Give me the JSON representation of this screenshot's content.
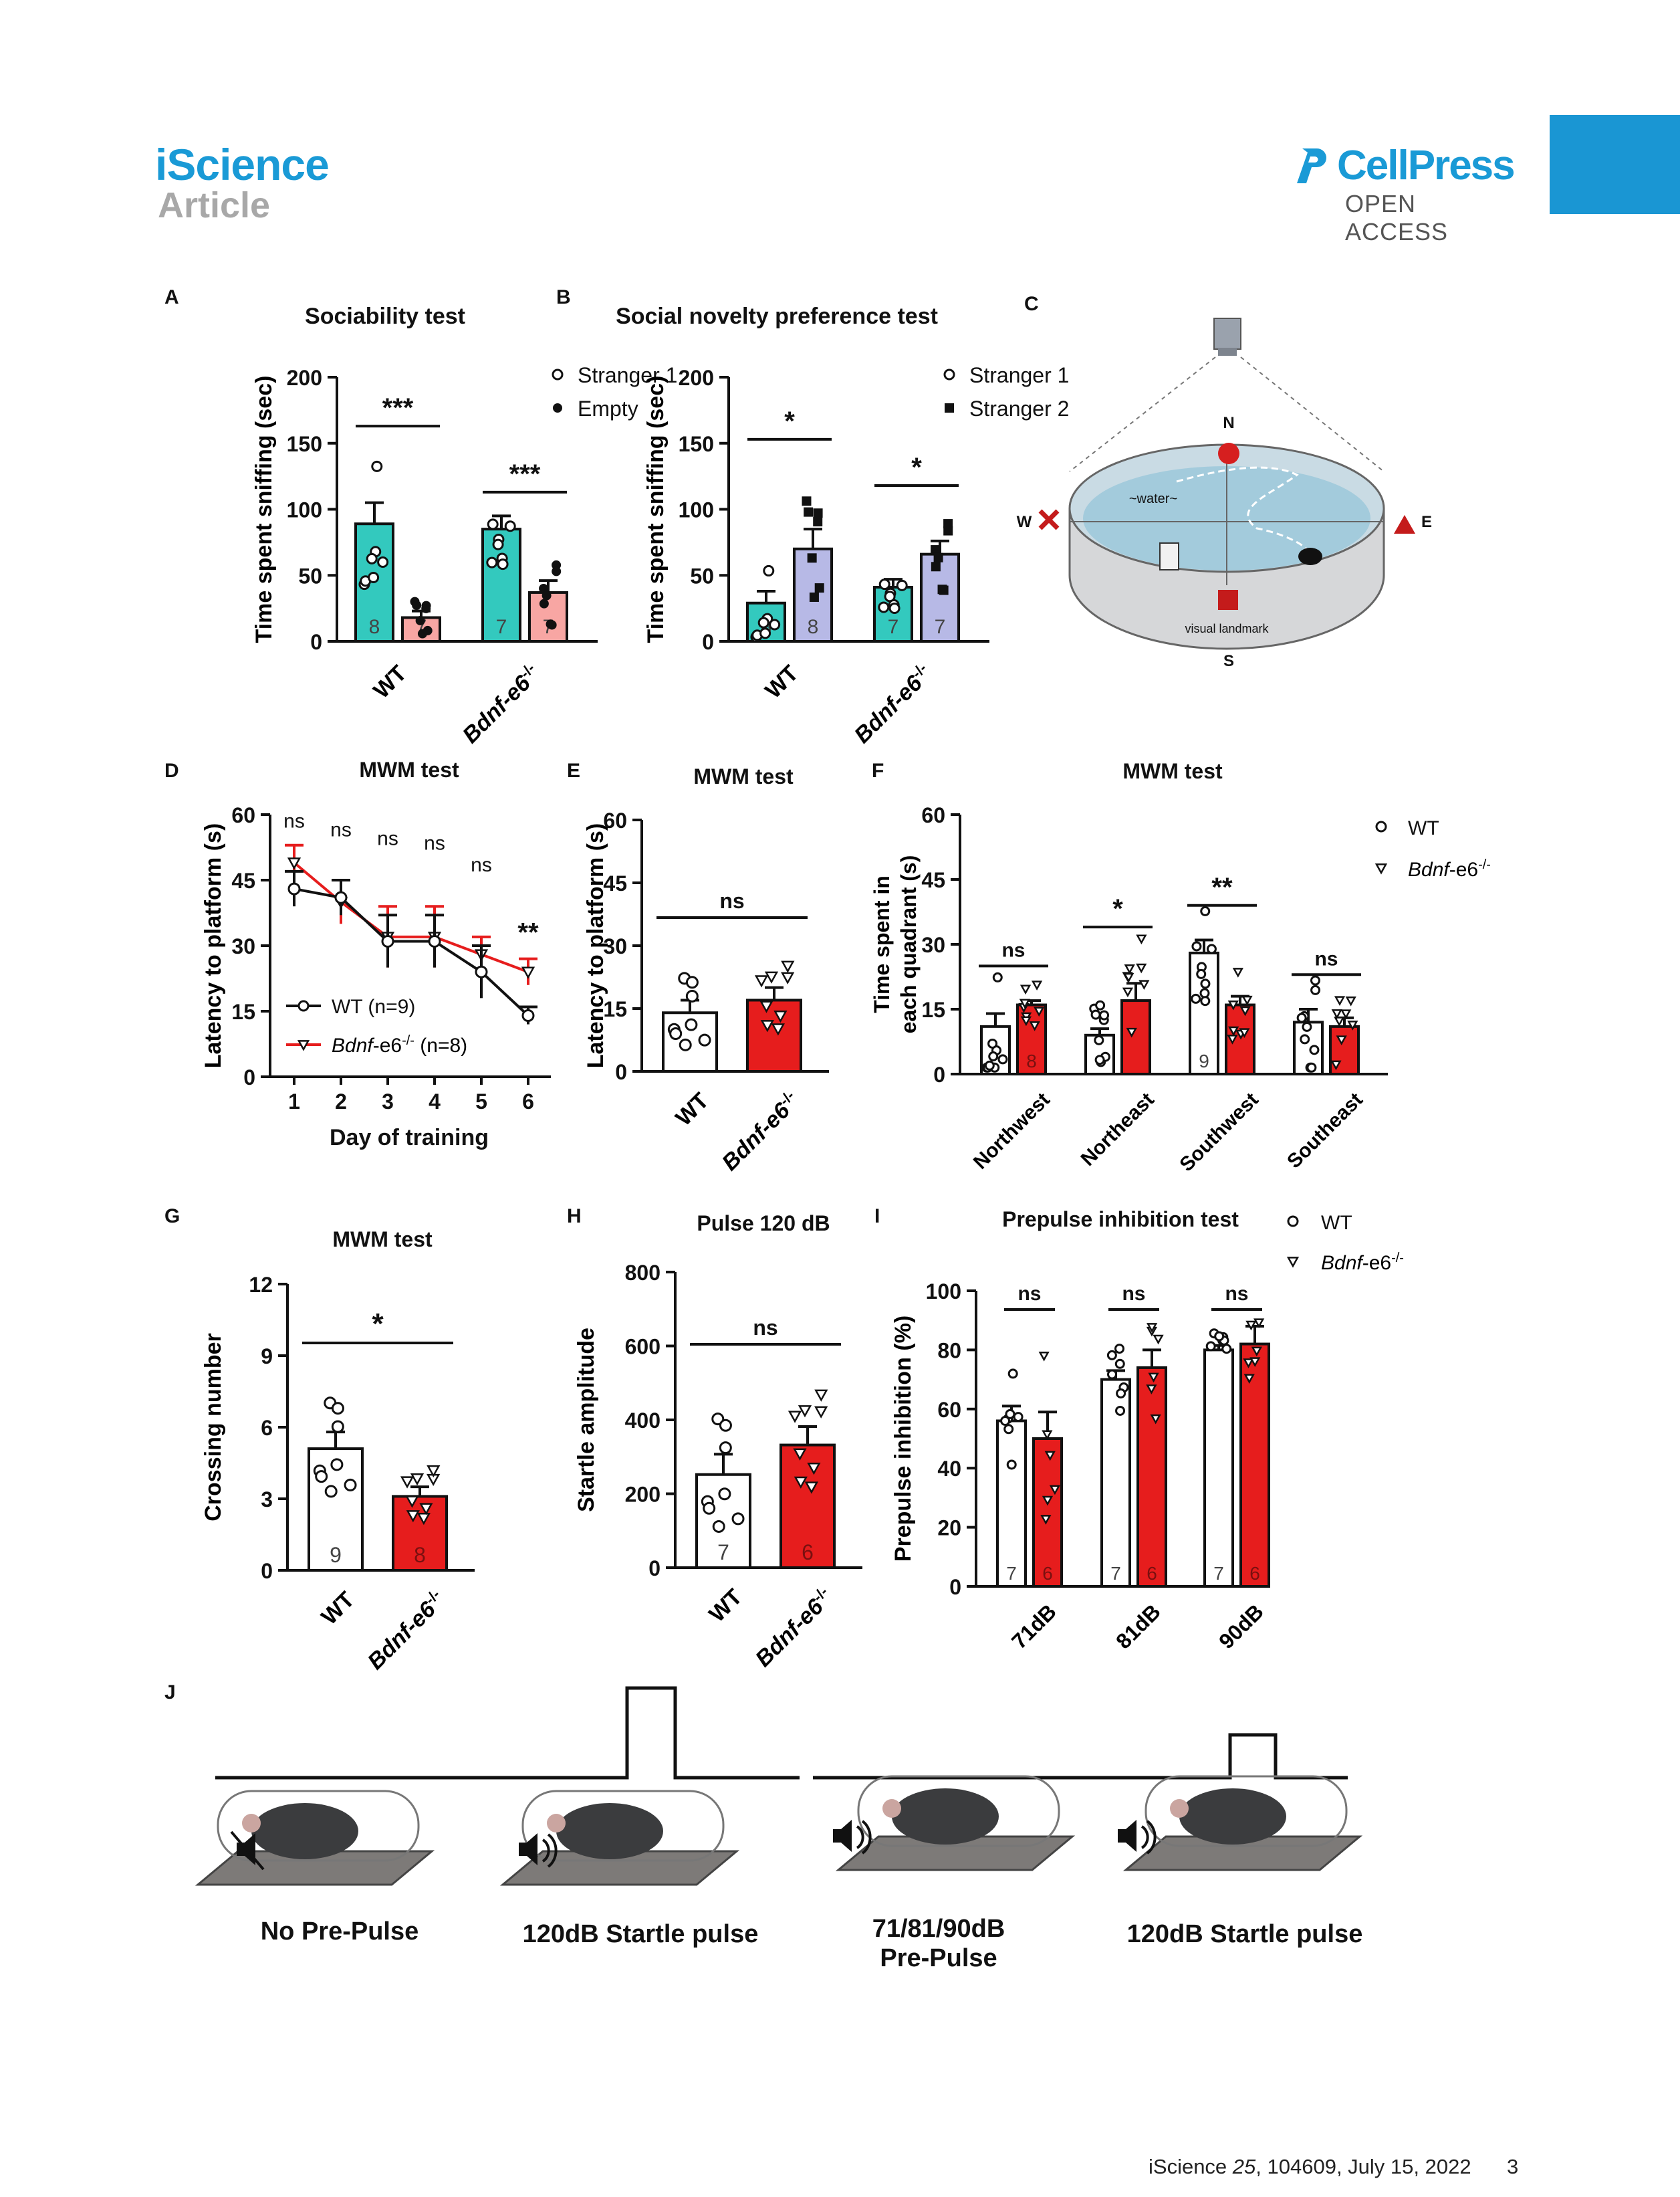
{
  "header": {
    "journal": "iScience",
    "article_type": "Article",
    "publisher": "CellPress",
    "access": "OPEN ACCESS"
  },
  "footer": {
    "citation_prefix": "iScience ",
    "citation_volume": "25",
    "citation_rest": ", 104609, July 15, 2022",
    "page_number": "3"
  },
  "colors": {
    "teal": "#33c9be",
    "pink": "#f8a6a3",
    "lavender": "#b7b9e6",
    "red": "#e61d1d",
    "brand_blue": "#1a9ad6"
  },
  "panels": {
    "A": {
      "letter": "A",
      "title": "Sociability test",
      "ylabel": "Time spent sniffing (sec)",
      "yticks": [
        "0",
        "50",
        "100",
        "150",
        "200"
      ],
      "legend": [
        "Stranger 1",
        "Empty"
      ],
      "groups": [
        "WT",
        "Bdnf-e6"
      ],
      "group_sup": "-/-",
      "bars": [
        89,
        18,
        85,
        37
      ],
      "errors": [
        16,
        5,
        10,
        9
      ],
      "n": [
        "8",
        "7",
        "7",
        "7"
      ],
      "sig": [
        "***",
        "***"
      ]
    },
    "B": {
      "letter": "B",
      "title": "Social novelty preference test",
      "ylabel": "Time spent sniffing (sec)",
      "yticks": [
        "0",
        "50",
        "100",
        "150",
        "200"
      ],
      "legend": [
        "Stranger 1",
        "Stranger 2"
      ],
      "groups": [
        "WT",
        "Bdnf-e6"
      ],
      "group_sup": "-/-",
      "bars": [
        29,
        70,
        41,
        66
      ],
      "errors": [
        9,
        15,
        6,
        10
      ],
      "n": [
        "8",
        "8",
        "7",
        "7"
      ],
      "sig": [
        "*",
        "*"
      ]
    },
    "C": {
      "letter": "C",
      "labels": {
        "north": "N",
        "south": "S",
        "west": "W",
        "east": "E",
        "water": "~water~",
        "landmark": "visual landmark"
      }
    },
    "D": {
      "letter": "D",
      "title": "MWM test",
      "ylabel": "Latency to platform (s)",
      "xlabel": "Day of training",
      "yticks": [
        "0",
        "15",
        "30",
        "45",
        "60"
      ],
      "xticks": [
        "1",
        "2",
        "3",
        "4",
        "5",
        "6"
      ],
      "wt": [
        43,
        41,
        31,
        31,
        24,
        14
      ],
      "ko": [
        49,
        40,
        32,
        32,
        28,
        24
      ],
      "wt_err": [
        4,
        4,
        6,
        6,
        6,
        2
      ],
      "ko_err": [
        4,
        5,
        7,
        7,
        4,
        3
      ],
      "sig": [
        "ns",
        "ns",
        "ns",
        "ns",
        "ns",
        "**"
      ],
      "legend_wt": "WT (n=9)",
      "legend_ko_prefix": "Bdnf",
      "legend_ko_mid": "-e6",
      "legend_ko_sup": "-/-",
      "legend_ko_suffix": " (n=8)"
    },
    "E": {
      "letter": "E",
      "title": "MWM test",
      "ylabel": "Latency to platform (s)",
      "yticks": [
        "0",
        "15",
        "30",
        "45",
        "60"
      ],
      "groups": [
        "WT",
        "Bdnf-e6"
      ],
      "group_sup": "-/-",
      "bars": [
        14,
        17
      ],
      "errors": [
        3,
        3
      ],
      "sig": "ns"
    },
    "F": {
      "letter": "F",
      "title": "MWM test",
      "ylabel_1": "Time spent in",
      "ylabel_2": "each quadrant (s)",
      "yticks": [
        "0",
        "15",
        "30",
        "45",
        "60"
      ],
      "quadrants": [
        "Northwest",
        "Northeast",
        "Southwest",
        "Southeast"
      ],
      "wt": [
        11,
        9,
        28,
        12
      ],
      "ko": [
        16,
        17,
        16,
        11
      ],
      "wt_err": [
        3,
        1.5,
        3,
        3
      ],
      "ko_err": [
        1,
        4,
        2,
        2
      ],
      "sig": [
        "ns",
        "*",
        "**",
        "ns"
      ],
      "n": [
        "8",
        "9"
      ],
      "legend_wt": "WT",
      "legend_ko_prefix": "Bdnf",
      "legend_ko_mid": "-e6",
      "legend_ko_sup": "-/-"
    },
    "G": {
      "letter": "G",
      "title": "MWM test",
      "ylabel": "Crossing number",
      "yticks": [
        "0",
        "3",
        "6",
        "9",
        "12"
      ],
      "groups": [
        "WT",
        "Bdnf-e6"
      ],
      "group_sup": "-/-",
      "bars": [
        5.1,
        3.1
      ],
      "errors": [
        0.7,
        0.4
      ],
      "n": [
        "9",
        "8"
      ],
      "sig": "*"
    },
    "H": {
      "letter": "H",
      "title": "Pulse 120 dB",
      "ylabel": "Startle amplitude",
      "yticks": [
        "0",
        "200",
        "400",
        "600",
        "800"
      ],
      "groups": [
        "WT",
        "Bdnf-e6"
      ],
      "group_sup": "-/-",
      "bars": [
        252,
        332
      ],
      "errors": [
        55,
        50
      ],
      "n": [
        "7",
        "6"
      ],
      "sig": "ns"
    },
    "I": {
      "letter": "I",
      "title": "Prepulse inhibition test",
      "ylabel": "Prepulse inhibition (%)",
      "yticks": [
        "0",
        "20",
        "40",
        "60",
        "80",
        "100"
      ],
      "groups": [
        "71dB",
        "81dB",
        "90dB"
      ],
      "wt": [
        56,
        70,
        80
      ],
      "ko": [
        50,
        74,
        82
      ],
      "wt_err": [
        5,
        3,
        1.5
      ],
      "ko_err": [
        9,
        6,
        6
      ],
      "sig": [
        "ns",
        "ns",
        "ns"
      ],
      "n": [
        "7",
        "6"
      ],
      "legend_wt": "WT",
      "legend_ko_prefix": "Bdnf",
      "legend_ko_mid": "-e6",
      "legend_ko_sup": "-/-"
    },
    "J": {
      "letter": "J",
      "labels": [
        "No Pre-Pulse",
        "120dB Startle pulse",
        "71/81/90dB",
        "Pre-Pulse",
        "120dB Startle pulse"
      ]
    }
  },
  "chart_data": [
    {
      "type": "bar",
      "title": "Sociability test",
      "ylabel": "Time spent sniffing (sec)",
      "ylim": [
        0,
        200
      ],
      "categories": [
        "WT",
        "Bdnf-e6-/-"
      ],
      "series": [
        {
          "name": "Stranger 1",
          "values": [
            89,
            85
          ]
        },
        {
          "name": "Empty",
          "values": [
            18,
            37
          ]
        }
      ]
    },
    {
      "type": "bar",
      "title": "Social novelty preference test",
      "ylabel": "Time spent sniffing (sec)",
      "ylim": [
        0,
        200
      ],
      "categories": [
        "WT",
        "Bdnf-e6-/-"
      ],
      "series": [
        {
          "name": "Stranger 1",
          "values": [
            29,
            41
          ]
        },
        {
          "name": "Stranger 2",
          "values": [
            70,
            66
          ]
        }
      ]
    },
    {
      "type": "line",
      "title": "MWM test",
      "xlabel": "Day of training",
      "ylabel": "Latency to platform (s)",
      "ylim": [
        0,
        60
      ],
      "x": [
        1,
        2,
        3,
        4,
        5,
        6
      ],
      "series": [
        {
          "name": "WT (n=9)",
          "values": [
            43,
            41,
            31,
            31,
            24,
            14
          ]
        },
        {
          "name": "Bdnf-e6-/- (n=8)",
          "values": [
            49,
            40,
            32,
            32,
            28,
            24
          ]
        }
      ]
    },
    {
      "type": "bar",
      "title": "MWM test",
      "ylabel": "Latency to platform (s)",
      "ylim": [
        0,
        60
      ],
      "categories": [
        "WT",
        "Bdnf-e6-/-"
      ],
      "values": [
        14,
        17
      ]
    },
    {
      "type": "bar",
      "title": "MWM test",
      "ylabel": "Time spent in each quadrant (s)",
      "ylim": [
        0,
        60
      ],
      "categories": [
        "Northwest",
        "Northeast",
        "Southwest",
        "Southeast"
      ],
      "series": [
        {
          "name": "WT",
          "values": [
            11,
            9,
            28,
            12
          ]
        },
        {
          "name": "Bdnf-e6-/-",
          "values": [
            16,
            17,
            16,
            11
          ]
        }
      ]
    },
    {
      "type": "bar",
      "title": "MWM test",
      "ylabel": "Crossing number",
      "ylim": [
        0,
        12
      ],
      "categories": [
        "WT",
        "Bdnf-e6-/-"
      ],
      "values": [
        5.1,
        3.1
      ]
    },
    {
      "type": "bar",
      "title": "Pulse 120 dB",
      "ylabel": "Startle amplitude",
      "ylim": [
        0,
        800
      ],
      "categories": [
        "WT",
        "Bdnf-e6-/-"
      ],
      "values": [
        252,
        332
      ]
    },
    {
      "type": "bar",
      "title": "Prepulse inhibition test",
      "ylabel": "Prepulse inhibition (%)",
      "ylim": [
        0,
        100
      ],
      "categories": [
        "71dB",
        "81dB",
        "90dB"
      ],
      "series": [
        {
          "name": "WT",
          "values": [
            56,
            70,
            80
          ]
        },
        {
          "name": "Bdnf-e6-/-",
          "values": [
            50,
            74,
            82
          ]
        }
      ]
    }
  ]
}
